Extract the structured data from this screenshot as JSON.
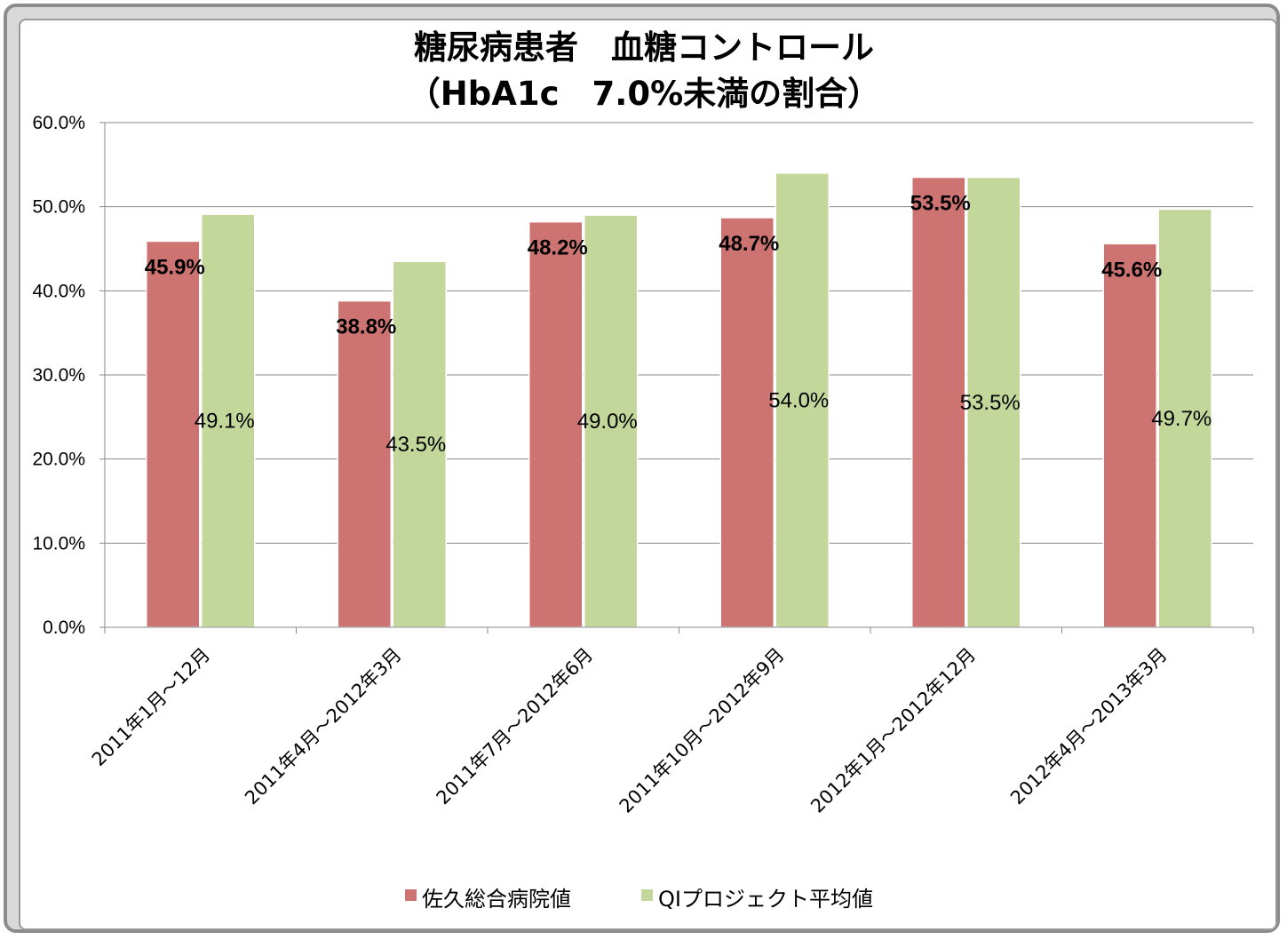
{
  "chart_data": {
    "type": "bar",
    "title": "糖尿病患者　血糖コントロール",
    "subtitle": "（HbA1c　7.0%未満の割合）",
    "categories": [
      "2011年1月～12月",
      "2011年4月～2012年3月",
      "2011年7月～2012年6月",
      "2011年10月～2012年9月",
      "2012年1月～2012年12月",
      "2012年4月～2013年3月"
    ],
    "series": [
      {
        "name": "佐久総合病院値",
        "color": "#cd7371",
        "values": [
          45.9,
          38.8,
          48.2,
          48.7,
          53.5,
          45.6
        ],
        "labels": [
          "45.9%",
          "38.8%",
          "48.2%",
          "48.7%",
          "53.5%",
          "45.6%"
        ]
      },
      {
        "name": "QIプロジェクト平均値",
        "color": "#c4d79b",
        "values": [
          49.1,
          43.5,
          49.0,
          54.0,
          53.5,
          49.7
        ],
        "labels": [
          "49.1%",
          "43.5%",
          "49.0%",
          "54.0%",
          "53.5%",
          "49.7%"
        ]
      }
    ],
    "y_ticks": [
      "0.0%",
      "10.0%",
      "20.0%",
      "30.0%",
      "40.0%",
      "50.0%",
      "60.0%"
    ],
    "ylim": [
      0,
      60
    ],
    "xlabel": "",
    "ylabel": "",
    "grid": true,
    "legend_position": "bottom"
  }
}
